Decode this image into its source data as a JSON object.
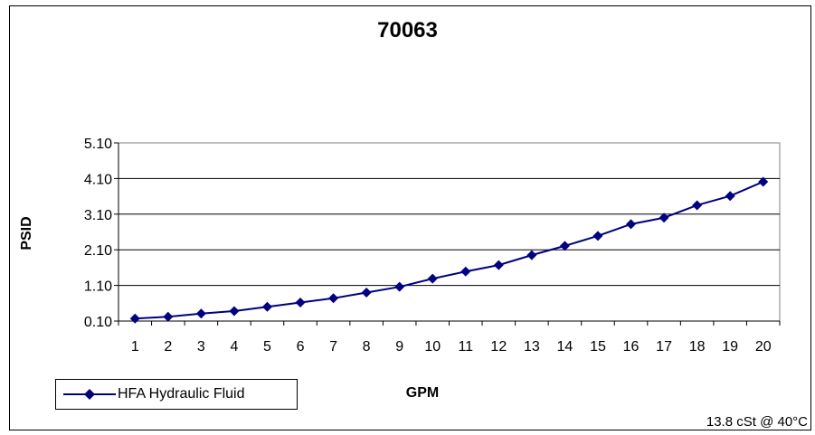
{
  "chart_data": {
    "type": "line",
    "title": "70063",
    "xlabel": "GPM",
    "ylabel": "PSID",
    "x": [
      1,
      2,
      3,
      4,
      5,
      6,
      7,
      8,
      9,
      10,
      11,
      12,
      13,
      14,
      15,
      16,
      17,
      18,
      19,
      20
    ],
    "series": [
      {
        "name": "HFA Hydraulic Fluid",
        "values": [
          0.17,
          0.22,
          0.31,
          0.38,
          0.5,
          0.62,
          0.74,
          0.9,
          1.06,
          1.29,
          1.49,
          1.67,
          1.95,
          2.21,
          2.49,
          2.82,
          3.0,
          3.35,
          3.61,
          4.01
        ],
        "color": "#000080"
      }
    ],
    "yticks": [
      "0.10",
      "1.10",
      "2.10",
      "3.10",
      "4.10",
      "5.10"
    ],
    "ylim": [
      0.1,
      5.1
    ],
    "grid": true,
    "legend_position": "bottom-left",
    "annotation": "13.8 cSt @ 40°C"
  }
}
